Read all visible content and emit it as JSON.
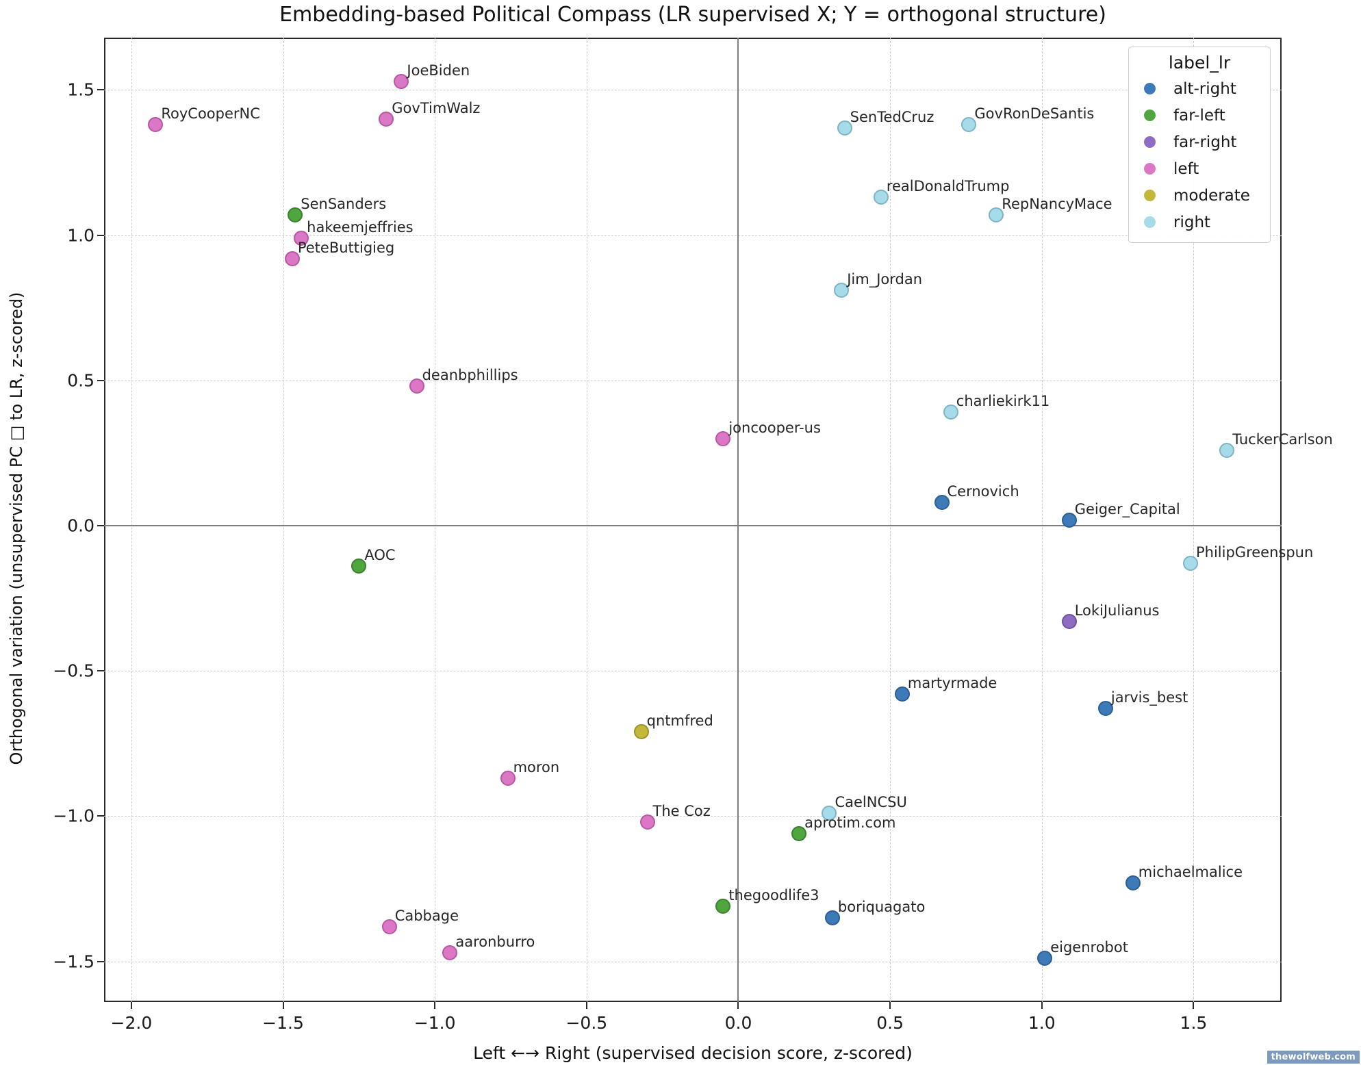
{
  "page": {
    "watermark": "thewolfweb.com"
  },
  "chart_data": {
    "type": "scatter",
    "title": "Embedding-based Political Compass (LR supervised X; Y = orthogonal structure)",
    "xlabel": "Left  ←→  Right (supervised decision score, z-scored)",
    "ylabel": "Orthogonal variation (unsupervised PC □ to LR, z-scored)",
    "xlim": [
      -2.09,
      1.79
    ],
    "ylim": [
      -1.64,
      1.68
    ],
    "x_ticks": [
      -2.0,
      -1.5,
      -1.0,
      -0.5,
      0.0,
      0.5,
      1.0,
      1.5
    ],
    "x_tick_labels": [
      "−2.0",
      "−1.5",
      "−1.0",
      "−0.5",
      "0.0",
      "0.5",
      "1.0",
      "1.5"
    ],
    "y_ticks": [
      -1.5,
      -1.0,
      -0.5,
      0.0,
      0.5,
      1.0,
      1.5
    ],
    "y_tick_labels": [
      "−1.5",
      "−1.0",
      "−0.5",
      "0.0",
      "0.5",
      "1.0",
      "1.5"
    ],
    "grid": true,
    "zero_lines": true,
    "legend": {
      "title": "label_lr",
      "position": "upper right",
      "entries": [
        "alt-right",
        "far-left",
        "far-right",
        "left",
        "moderate",
        "right"
      ]
    },
    "classes": {
      "alt-right": {
        "fill": "#3d7ab8",
        "edge": "#2d5f94"
      },
      "far-left": {
        "fill": "#4fa53e",
        "edge": "#3b8030"
      },
      "far-right": {
        "fill": "#8f6cc3",
        "edge": "#71519e"
      },
      "left": {
        "fill": "#dc77c5",
        "edge": "#b857a3"
      },
      "moderate": {
        "fill": "#c2b93a",
        "edge": "#9a922a"
      },
      "right": {
        "fill": "#a6dbe9",
        "edge": "#7fb4c4"
      }
    },
    "points": [
      {
        "label": "JoeBiden",
        "class": "left",
        "x": -1.11,
        "y": 1.53
      },
      {
        "label": "GovTimWalz",
        "class": "left",
        "x": -1.16,
        "y": 1.4
      },
      {
        "label": "RoyCooperNC",
        "class": "left",
        "x": -1.92,
        "y": 1.38
      },
      {
        "label": "SenSanders",
        "class": "far-left",
        "x": -1.46,
        "y": 1.07
      },
      {
        "label": "hakeemjeffries",
        "class": "left",
        "x": -1.44,
        "y": 0.99
      },
      {
        "label": "PeteButtigieg",
        "class": "left",
        "x": -1.47,
        "y": 0.92
      },
      {
        "label": "deanbphillips",
        "class": "left",
        "x": -1.06,
        "y": 0.48
      },
      {
        "label": "joncooper-us",
        "class": "left",
        "x": -0.05,
        "y": 0.3
      },
      {
        "label": "AOC",
        "class": "far-left",
        "x": -1.25,
        "y": -0.14
      },
      {
        "label": "SenTedCruz",
        "class": "right",
        "x": 0.35,
        "y": 1.37
      },
      {
        "label": "GovRonDeSantis",
        "class": "right",
        "x": 0.76,
        "y": 1.38
      },
      {
        "label": "realDonaldTrump",
        "class": "right",
        "x": 0.47,
        "y": 1.13
      },
      {
        "label": "RepNancyMace",
        "class": "right",
        "x": 0.85,
        "y": 1.07
      },
      {
        "label": "Jim_Jordan",
        "class": "right",
        "x": 0.34,
        "y": 0.81
      },
      {
        "label": "charliekirk11",
        "class": "right",
        "x": 0.7,
        "y": 0.39
      },
      {
        "label": "TuckerCarlson",
        "class": "right",
        "x": 1.61,
        "y": 0.26
      },
      {
        "label": "Cernovich",
        "class": "alt-right",
        "x": 0.67,
        "y": 0.08
      },
      {
        "label": "Geiger_Capital",
        "class": "alt-right",
        "x": 1.09,
        "y": 0.02
      },
      {
        "label": "PhilipGreenspun",
        "class": "right",
        "x": 1.49,
        "y": -0.13
      },
      {
        "label": "LokiJulianus",
        "class": "far-right",
        "x": 1.09,
        "y": -0.33
      },
      {
        "label": "martyrmade",
        "class": "alt-right",
        "x": 0.54,
        "y": -0.58
      },
      {
        "label": "jarvis_best",
        "class": "alt-right",
        "x": 1.21,
        "y": -0.63
      },
      {
        "label": "qntmfred",
        "class": "moderate",
        "x": -0.32,
        "y": -0.71
      },
      {
        "label": "moron",
        "class": "left",
        "x": -0.76,
        "y": -0.87
      },
      {
        "label": "CaelNCSU",
        "class": "right",
        "x": 0.3,
        "y": -0.99
      },
      {
        "label": "The Coz",
        "class": "left",
        "x": -0.3,
        "y": -1.02
      },
      {
        "label": "aprotim.com",
        "class": "far-left",
        "x": 0.2,
        "y": -1.06
      },
      {
        "label": "michaelmalice",
        "class": "alt-right",
        "x": 1.3,
        "y": -1.23
      },
      {
        "label": "thegoodlife3",
        "class": "far-left",
        "x": -0.05,
        "y": -1.31
      },
      {
        "label": "boriquagato",
        "class": "alt-right",
        "x": 0.31,
        "y": -1.35
      },
      {
        "label": "Cabbage",
        "class": "left",
        "x": -1.15,
        "y": -1.38
      },
      {
        "label": "aaronburro",
        "class": "left",
        "x": -0.95,
        "y": -1.47
      },
      {
        "label": "eigenrobot",
        "class": "alt-right",
        "x": 1.01,
        "y": -1.49
      }
    ]
  }
}
